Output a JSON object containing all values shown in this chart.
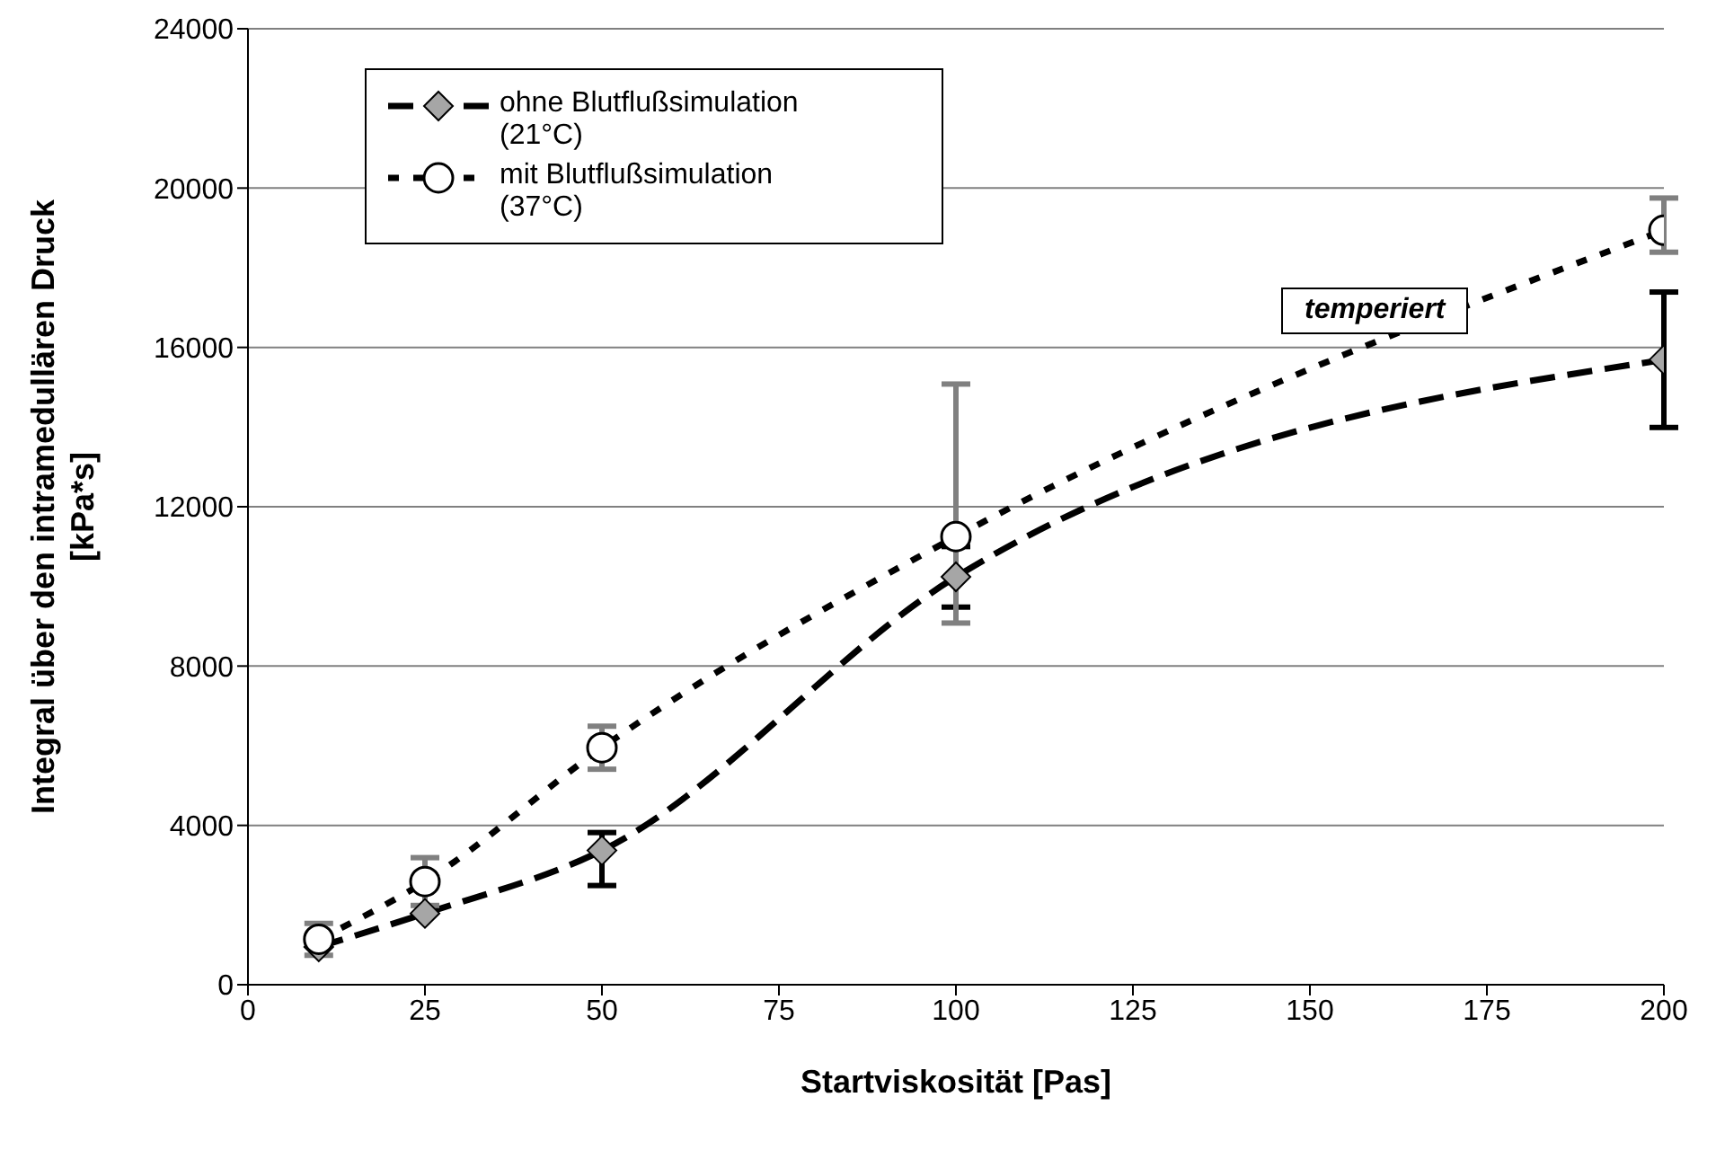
{
  "chart_data": {
    "type": "line",
    "xlabel": "Startviskosität [Pas]",
    "ylabel": "Integral über den intramedullären Druck [kPa*s]",
    "xlim": [
      0,
      200
    ],
    "xticks": [
      0,
      25,
      50,
      75,
      100,
      125,
      150,
      175,
      200
    ],
    "ylim": [
      0,
      24000
    ],
    "yticks": [
      0,
      4000,
      8000,
      12000,
      16000,
      20000,
      24000
    ],
    "grid": "y",
    "legend": "top left",
    "annotations": [
      "temperiert"
    ],
    "series": [
      {
        "name": "ohne Blutflußsimulation (21°C)",
        "color": "#000000",
        "marker": "diamond",
        "line_style": "dashed",
        "x": [
          10,
          25,
          50,
          100,
          200
        ],
        "values": [
          950,
          1790,
          3370,
          10240,
          15690
        ],
        "errors": [
          null,
          null,
          [
            2490,
            3820
          ],
          [
            9480,
            11000
          ],
          [
            13990,
            17390
          ]
        ]
      },
      {
        "name": "mit Blutflußsimulation (37°C)",
        "color": "#000000",
        "marker": "circle",
        "line_style": "dotted",
        "x": [
          10,
          25,
          50,
          100,
          200
        ],
        "values": [
          1140,
          2590,
          5950,
          11250,
          18940
        ],
        "errors": [
          400,
          600,
          540,
          [
            9080,
            15080
          ],
          [
            18390,
            19750
          ]
        ]
      }
    ]
  }
}
